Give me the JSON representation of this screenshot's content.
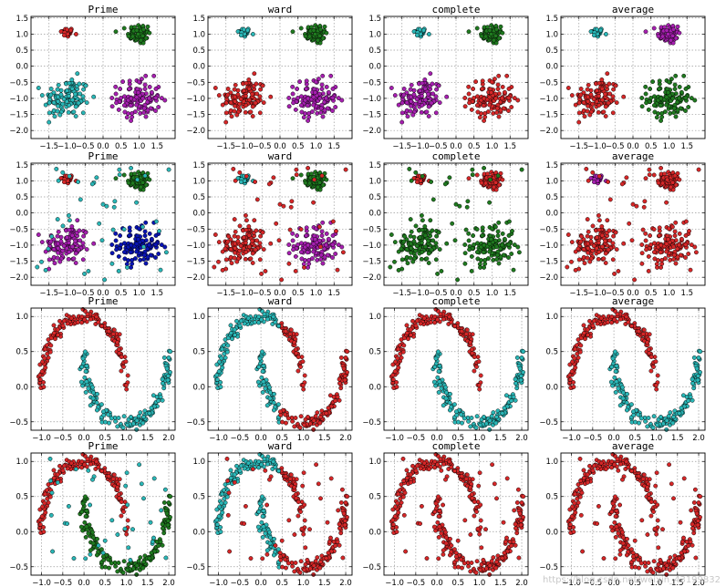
{
  "figure_background": "#ffffff",
  "colors": {
    "red": "#d62728",
    "cyan": "#2ab7b7",
    "green": "#1f7a1f",
    "purple": "#a61fb0",
    "blue": "#0a14b4",
    "grid": "#9a9a9a",
    "point_edge": "#000000"
  },
  "chart_data": [
    {
      "type": "scatter",
      "title": "Prime",
      "dataset": "blobs",
      "xlim": [
        -2.0,
        2.0
      ],
      "ylim": [
        -2.25,
        1.55
      ],
      "xticks": [
        -1.5,
        -1.0,
        -0.5,
        0.0,
        0.5,
        1.0,
        1.5
      ],
      "yticks": [
        -2.0,
        -1.5,
        -1.0,
        -0.5,
        0.0,
        0.5,
        1.0,
        1.5
      ],
      "grid": true,
      "clusters": {
        "A": "red",
        "B": "green",
        "C": "cyan",
        "D": "purple"
      }
    },
    {
      "type": "scatter",
      "title": "ward",
      "dataset": "blobs",
      "xlim": [
        -2.0,
        2.0
      ],
      "ylim": [
        -2.25,
        1.55
      ],
      "xticks": [
        -1.5,
        -1.0,
        -0.5,
        0.0,
        0.5,
        1.0,
        1.5
      ],
      "yticks": [
        -2.0,
        -1.5,
        -1.0,
        -0.5,
        0.0,
        0.5,
        1.0,
        1.5
      ],
      "grid": true,
      "clusters": {
        "A": "cyan",
        "B": "green",
        "C": "red",
        "D": "purple"
      }
    },
    {
      "type": "scatter",
      "title": "complete",
      "dataset": "blobs",
      "xlim": [
        -2.0,
        2.0
      ],
      "ylim": [
        -2.25,
        1.55
      ],
      "xticks": [
        -1.5,
        -1.0,
        -0.5,
        0.0,
        0.5,
        1.0,
        1.5
      ],
      "yticks": [
        -2.0,
        -1.5,
        -1.0,
        -0.5,
        0.0,
        0.5,
        1.0,
        1.5
      ],
      "grid": true,
      "clusters": {
        "A": "cyan",
        "B": "green",
        "C": "purple",
        "D": "red"
      }
    },
    {
      "type": "scatter",
      "title": "average",
      "dataset": "blobs",
      "xlim": [
        -2.0,
        2.0
      ],
      "ylim": [
        -2.25,
        1.55
      ],
      "xticks": [
        -1.5,
        -1.0,
        -0.5,
        0.0,
        0.5,
        1.0,
        1.5
      ],
      "yticks": [
        -2.0,
        -1.5,
        -1.0,
        -0.5,
        0.0,
        0.5,
        1.0,
        1.5
      ],
      "grid": true,
      "clusters": {
        "A": "cyan",
        "B": "purple",
        "C": "red",
        "D": "green"
      }
    },
    {
      "type": "scatter",
      "title": "Prime",
      "dataset": "blobs_noisy",
      "xlim": [
        -2.0,
        2.0
      ],
      "ylim": [
        -2.25,
        1.55
      ],
      "xticks": [
        -1.5,
        -1.0,
        -0.5,
        0.0,
        0.5,
        1.0,
        1.5
      ],
      "yticks": [
        -2.0,
        -1.5,
        -1.0,
        -0.5,
        0.0,
        0.5,
        1.0,
        1.5
      ],
      "grid": true,
      "clusters": {
        "A": "red",
        "B": "green",
        "C": "purple",
        "D": "blue",
        "noise": "cyan"
      }
    },
    {
      "type": "scatter",
      "title": "ward",
      "dataset": "blobs_noisy",
      "xlim": [
        -2.0,
        2.0
      ],
      "ylim": [
        -2.25,
        1.55
      ],
      "xticks": [
        -1.5,
        -1.0,
        -0.5,
        0.0,
        0.5,
        1.0,
        1.5
      ],
      "yticks": [
        -2.0,
        -1.5,
        -1.0,
        -0.5,
        0.0,
        0.5,
        1.0,
        1.5
      ],
      "grid": true,
      "clusters": {
        "A": "cyan",
        "B": "green",
        "C": "red",
        "D": "purple",
        "noise": "red"
      }
    },
    {
      "type": "scatter",
      "title": "complete",
      "dataset": "blobs_noisy",
      "xlim": [
        -2.0,
        2.0
      ],
      "ylim": [
        -2.25,
        1.55
      ],
      "xticks": [
        -1.5,
        -1.0,
        -0.5,
        0.0,
        0.5,
        1.0,
        1.5
      ],
      "yticks": [
        -2.0,
        -1.5,
        -1.0,
        -0.5,
        0.0,
        0.5,
        1.0,
        1.5
      ],
      "grid": true,
      "clusters": {
        "A": "red",
        "B": "red",
        "C": "green",
        "D": "green",
        "noise": "green"
      }
    },
    {
      "type": "scatter",
      "title": "average",
      "dataset": "blobs_noisy",
      "xlim": [
        -2.0,
        2.0
      ],
      "ylim": [
        -2.25,
        1.55
      ],
      "xticks": [
        -1.5,
        -1.0,
        -0.5,
        0.0,
        0.5,
        1.0,
        1.5
      ],
      "yticks": [
        -2.0,
        -1.5,
        -1.0,
        -0.5,
        0.0,
        0.5,
        1.0,
        1.5
      ],
      "grid": true,
      "clusters": {
        "A": "purple",
        "B": "red",
        "C": "red",
        "D": "red",
        "noise": "red"
      }
    },
    {
      "type": "scatter",
      "title": "Prime",
      "dataset": "moons",
      "xlim": [
        -1.25,
        2.15
      ],
      "ylim": [
        -0.62,
        1.12
      ],
      "xticks": [
        -1.0,
        -0.5,
        0.0,
        0.5,
        1.0,
        1.5,
        2.0
      ],
      "yticks": [
        -0.5,
        0.0,
        0.5,
        1.0
      ],
      "grid": true,
      "clusters": {
        "upper": "red",
        "lower": "cyan"
      }
    },
    {
      "type": "scatter",
      "title": "ward",
      "dataset": "moons",
      "xlim": [
        -1.25,
        2.15
      ],
      "ylim": [
        -0.62,
        1.12
      ],
      "xticks": [
        -1.0,
        -0.5,
        0.0,
        0.5,
        1.0,
        1.5,
        2.0
      ],
      "yticks": [
        -0.5,
        0.0,
        0.5,
        1.0
      ],
      "grid": true,
      "split_x": 0.45,
      "clusters": {
        "left": "cyan",
        "right": "red"
      }
    },
    {
      "type": "scatter",
      "title": "complete",
      "dataset": "moons",
      "xlim": [
        -1.25,
        2.15
      ],
      "ylim": [
        -0.62,
        1.12
      ],
      "xticks": [
        -1.0,
        -0.5,
        0.0,
        0.5,
        1.0,
        1.5,
        2.0
      ],
      "yticks": [
        -0.5,
        0.0,
        0.5,
        1.0
      ],
      "grid": true,
      "clusters": {
        "upper": "red",
        "lower": "cyan"
      }
    },
    {
      "type": "scatter",
      "title": "average",
      "dataset": "moons",
      "xlim": [
        -1.25,
        2.15
      ],
      "ylim": [
        -0.62,
        1.12
      ],
      "xticks": [
        -1.0,
        -0.5,
        0.0,
        0.5,
        1.0,
        1.5,
        2.0
      ],
      "yticks": [
        -0.5,
        0.0,
        0.5,
        1.0
      ],
      "grid": true,
      "clusters": {
        "upper": "red",
        "lower": "cyan"
      }
    },
    {
      "type": "scatter",
      "title": "Prime",
      "dataset": "moons_noisy",
      "xlim": [
        -1.25,
        2.15
      ],
      "ylim": [
        -0.62,
        1.12
      ],
      "xticks": [
        -1.0,
        -0.5,
        0.0,
        0.5,
        1.0,
        1.5,
        2.0
      ],
      "yticks": [
        -0.5,
        0.0,
        0.5,
        1.0
      ],
      "grid": true,
      "clusters": {
        "upper": "red",
        "lower": "green",
        "noise": "cyan"
      }
    },
    {
      "type": "scatter",
      "title": "ward",
      "dataset": "moons_noisy",
      "xlim": [
        -1.25,
        2.15
      ],
      "ylim": [
        -0.62,
        1.12
      ],
      "xticks": [
        -1.0,
        -0.5,
        0.0,
        0.5,
        1.0,
        1.5,
        2.0
      ],
      "yticks": [
        -0.5,
        0.0,
        0.5,
        1.0
      ],
      "grid": true,
      "split_x": 0.45,
      "clusters": {
        "left": "cyan",
        "right": "red",
        "noise": "red"
      }
    },
    {
      "type": "scatter",
      "title": "complete",
      "dataset": "moons_noisy",
      "xlim": [
        -1.25,
        2.15
      ],
      "ylim": [
        -0.62,
        1.12
      ],
      "xticks": [
        -1.0,
        -0.5,
        0.0,
        0.5,
        1.0,
        1.5,
        2.0
      ],
      "yticks": [
        -0.5,
        0.0,
        0.5,
        1.0
      ],
      "grid": true,
      "clusters": {
        "upper": "red",
        "lower": "red",
        "noise": "red"
      }
    },
    {
      "type": "scatter",
      "title": "average",
      "dataset": "moons_noisy",
      "xlim": [
        -1.25,
        2.15
      ],
      "ylim": [
        -0.62,
        1.12
      ],
      "xticks": [
        -1.0,
        -0.5,
        0.0,
        0.5,
        1.0,
        1.5,
        2.0
      ],
      "yticks": [
        -0.5,
        0.0,
        0.5,
        1.0
      ],
      "grid": true,
      "clusters": {
        "upper": "red",
        "lower": "red",
        "noise": "red"
      }
    }
  ],
  "blob_centers": {
    "A": [
      -1.0,
      1.05
    ],
    "B": [
      1.0,
      1.0
    ],
    "C": [
      -1.0,
      -1.0
    ],
    "D": [
      1.0,
      -1.0
    ]
  },
  "blob_spreads": {
    "A": 0.09,
    "B": 0.16,
    "C": 0.32,
    "D": 0.3
  },
  "blob_counts": {
    "A": 35,
    "B": 70,
    "C": 120,
    "D": 120
  },
  "noise_counts": {
    "blobs_noisy": 45,
    "moons_noisy": 40
  },
  "moon_counts": {
    "upper": 170,
    "lower": 170
  },
  "watermark": "https://blog.csdn.net/weixin_43199832"
}
